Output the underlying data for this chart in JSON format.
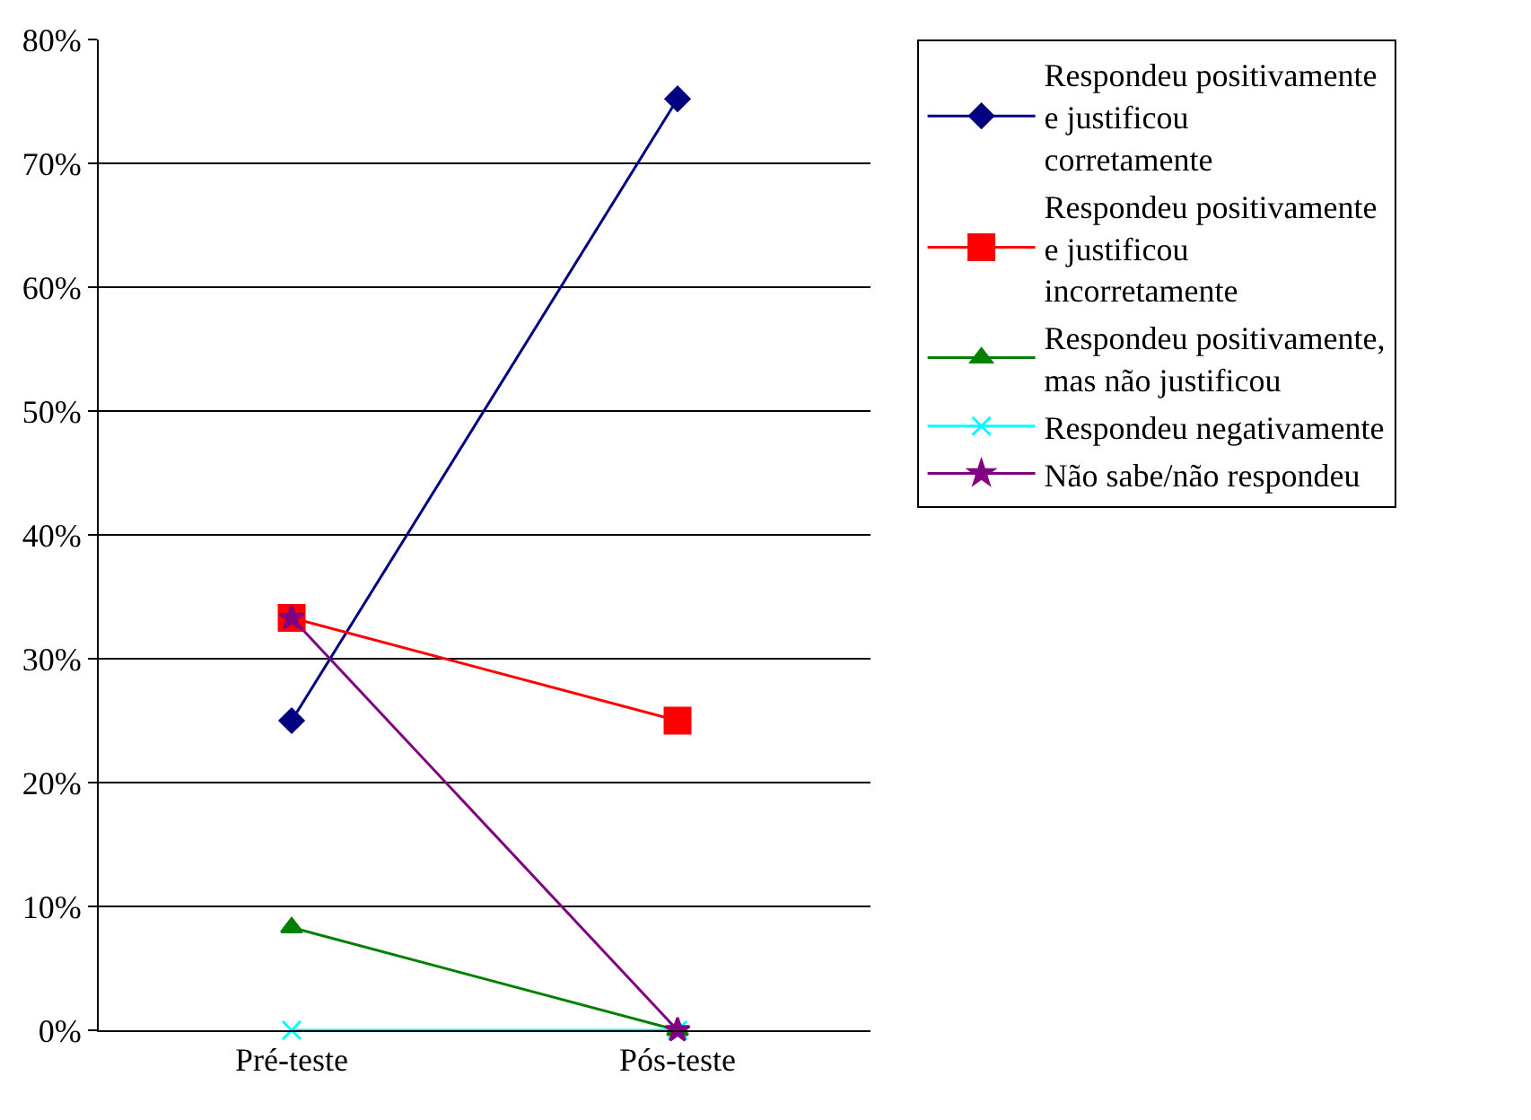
{
  "chart_data": {
    "type": "line",
    "categories": [
      "Pré-teste",
      "Pós-teste"
    ],
    "series": [
      {
        "name": "Respondeu positivamente e justificou corretamente",
        "color": "#000080",
        "marker": "diamond",
        "values": [
          25,
          75.2
        ]
      },
      {
        "name": "Respondeu positivamente e justificou incorretamente",
        "color": "#ff0000",
        "marker": "square",
        "values": [
          33.3,
          25
        ]
      },
      {
        "name": "Respondeu positivamente, mas não justificou",
        "color": "#008000",
        "marker": "triangle",
        "values": [
          8.3,
          0
        ]
      },
      {
        "name": "Respondeu negativamente",
        "color": "#00ffff",
        "marker": "cross",
        "values": [
          0,
          0
        ]
      },
      {
        "name": "Não sabe/não respondeu",
        "color": "#800080",
        "marker": "star",
        "values": [
          33.3,
          0
        ]
      }
    ],
    "ylim": [
      0,
      80
    ],
    "yticks": [
      {
        "value": 0,
        "label": "0%"
      },
      {
        "value": 10,
        "label": "10%"
      },
      {
        "value": 20,
        "label": "20%"
      },
      {
        "value": 30,
        "label": "30%"
      },
      {
        "value": 40,
        "label": "40%"
      },
      {
        "value": 50,
        "label": "50%"
      },
      {
        "value": 60,
        "label": "60%"
      },
      {
        "value": 70,
        "label": "70%"
      },
      {
        "value": 80,
        "label": "80%"
      }
    ],
    "grid": "y",
    "legend": "right",
    "line_style": "solid"
  }
}
